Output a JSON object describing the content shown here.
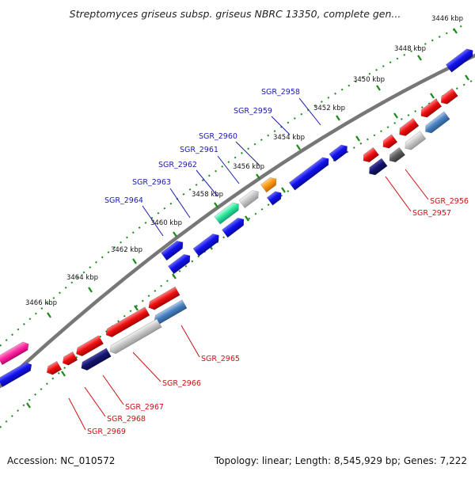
{
  "title": "Streptomyces griseus subsp. griseus NBRC 13350, complete gen...",
  "footer": {
    "accession": "Accession: NC_010572",
    "summary": "Topology: linear; Length: 8,545,929 bp; Genes: 7,222"
  },
  "ticks": [
    {
      "label": "3446 kbp",
      "pos": 3446
    },
    {
      "label": "3448 kbp",
      "pos": 3448
    },
    {
      "label": "3450 kbp",
      "pos": 3450
    },
    {
      "label": "3452 kbp",
      "pos": 3452
    },
    {
      "label": "3454 kbp",
      "pos": 3454
    },
    {
      "label": "3456 kbp",
      "pos": 3456
    },
    {
      "label": "3458 kbp",
      "pos": 3458
    },
    {
      "label": "3460 kbp",
      "pos": 3460
    },
    {
      "label": "3462 kbp",
      "pos": 3462
    },
    {
      "label": "3464 kbp",
      "pos": 3464
    },
    {
      "label": "3466 kbp",
      "pos": 3466
    }
  ],
  "gene_labels": [
    {
      "id": "SGR_2956",
      "strand": "minus"
    },
    {
      "id": "SGR_2957",
      "strand": "minus"
    },
    {
      "id": "SGR_2958",
      "strand": "plus"
    },
    {
      "id": "SGR_2959",
      "strand": "plus"
    },
    {
      "id": "SGR_2960",
      "strand": "plus"
    },
    {
      "id": "SGR_2961",
      "strand": "plus"
    },
    {
      "id": "SGR_2962",
      "strand": "plus"
    },
    {
      "id": "SGR_2963",
      "strand": "plus"
    },
    {
      "id": "SGR_2964",
      "strand": "plus"
    },
    {
      "id": "SGR_2965",
      "strand": "minus"
    },
    {
      "id": "SGR_2966",
      "strand": "minus"
    },
    {
      "id": "SGR_2967",
      "strand": "minus"
    },
    {
      "id": "SGR_2968",
      "strand": "minus"
    },
    {
      "id": "SGR_2969",
      "strand": "minus"
    }
  ],
  "colors": {
    "plus_strand": "#1414e6",
    "minus_strand": "#e61414",
    "backbone": "#777777",
    "ticks": "#1a8a1a",
    "label_plus": "#1a1ab0",
    "label_minus": "#cc1111"
  }
}
